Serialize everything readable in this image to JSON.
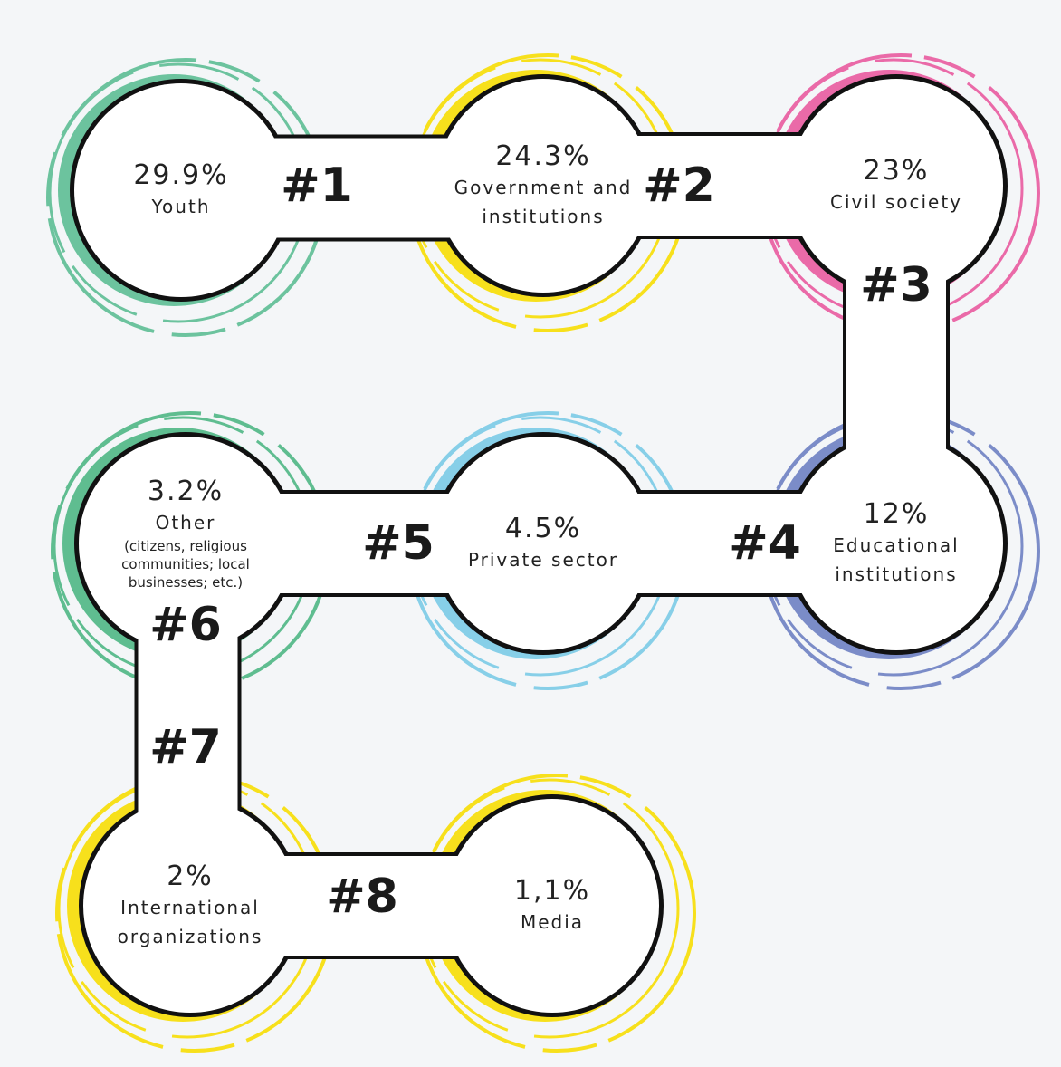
{
  "nodes": [
    {
      "rank": "#1",
      "value": "29.9%",
      "label": "Youth",
      "color": "#6cc39e"
    },
    {
      "rank": "#2",
      "value": "24.3%",
      "label": "Government and institutions",
      "color": "#f7e01c"
    },
    {
      "rank": "#3",
      "value": "23%",
      "label": "Civil society",
      "color": "#ea6aa8"
    },
    {
      "rank": "#4",
      "value": "12%",
      "label": "Educational institutions",
      "color": "#7b8cc8"
    },
    {
      "rank": "#5",
      "value": "4.5%",
      "label": "Private sector",
      "color": "#87cfe8"
    },
    {
      "rank": "#6",
      "value": "3.2%",
      "label": "Other",
      "note": "(citizens, religious communities; local businesses; etc.)",
      "color": "#5fbd90"
    },
    {
      "rank": "#7",
      "value": "2%",
      "label": "International organizations",
      "color": "#f7e01c"
    },
    {
      "rank": "#8",
      "value": "1,1%",
      "label": "Media",
      "color": "#f7e01c"
    }
  ]
}
